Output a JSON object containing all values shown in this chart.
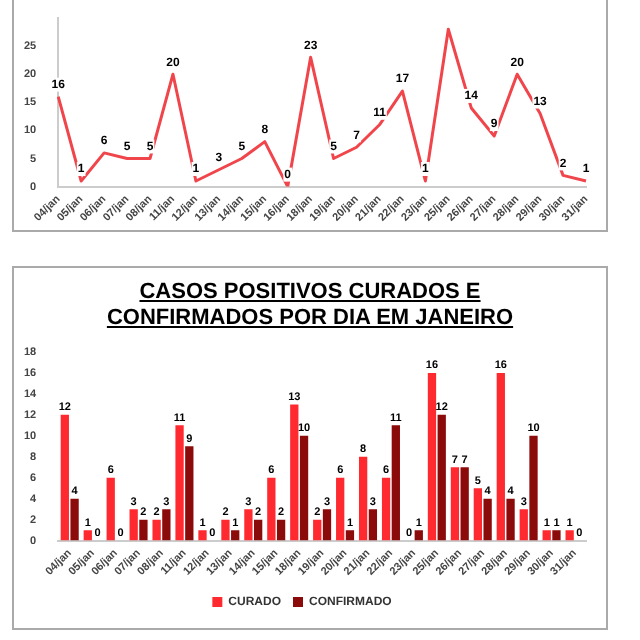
{
  "chart_data": [
    {
      "type": "line",
      "categories": [
        "04/jan",
        "05/jan",
        "06/jan",
        "07/jan",
        "08/jan",
        "11/jan",
        "12/jan",
        "13/jan",
        "14/jan",
        "15/jan",
        "16/jan",
        "18/jan",
        "19/jan",
        "20/jan",
        "21/jan",
        "22/jan",
        "23/jan",
        "25/jan",
        "26/jan",
        "27/jan",
        "28/jan",
        "29/jan",
        "30/jan",
        "31/jan"
      ],
      "values": [
        16,
        1,
        6,
        5,
        5,
        20,
        1,
        3,
        5,
        8,
        0,
        23,
        5,
        7,
        11,
        17,
        1,
        28,
        14,
        9,
        20,
        13,
        2,
        1
      ],
      "value_labels": [
        "16",
        "1",
        "6",
        "5",
        "5",
        "20",
        "1",
        "3",
        "5",
        "8",
        "0",
        "23",
        "5",
        "7",
        "11",
        "17",
        "1",
        null,
        "14",
        "9",
        "20",
        "13",
        "2",
        "1"
      ],
      "color": "#f0464b",
      "ylim": [
        0,
        30
      ],
      "yticks": [
        0,
        5,
        10,
        15,
        20,
        25
      ],
      "grid": false,
      "marker": "none",
      "legend": false
    },
    {
      "type": "bar",
      "title": "CASOS POSITIVOS CURADOS E CONFIRMADOS POR DIA EM JANEIRO",
      "categories": [
        "04/jan",
        "05/jan",
        "06/jan",
        "07/jan",
        "08/jan",
        "11/jan",
        "12/jan",
        "13/jan",
        "14/jan",
        "15/jan",
        "18/jan",
        "19/jan",
        "20/jan",
        "21/jan",
        "22/jan",
        "23/jan",
        "25/jan",
        "26/jan",
        "27/jan",
        "28/jan",
        "29/jan",
        "30/jan",
        "31/jan"
      ],
      "series": [
        {
          "name": "CURADO",
          "color": "#ff2a2f",
          "values": [
            12,
            1,
            6,
            3,
            2,
            11,
            1,
            2,
            3,
            6,
            13,
            2,
            6,
            8,
            6,
            0,
            16,
            7,
            5,
            16,
            3,
            1,
            1
          ]
        },
        {
          "name": "CONFIRMADO",
          "color": "#8b0a0a",
          "values": [
            4,
            0,
            0,
            2,
            3,
            9,
            0,
            1,
            2,
            2,
            10,
            3,
            1,
            3,
            11,
            1,
            12,
            7,
            4,
            4,
            10,
            1,
            0
          ]
        }
      ],
      "ylim": [
        0,
        18
      ],
      "yticks": [
        0,
        2,
        4,
        6,
        8,
        10,
        12,
        14,
        16,
        18
      ],
      "grid": false,
      "data_labels": true,
      "legend": "bottom"
    }
  ]
}
